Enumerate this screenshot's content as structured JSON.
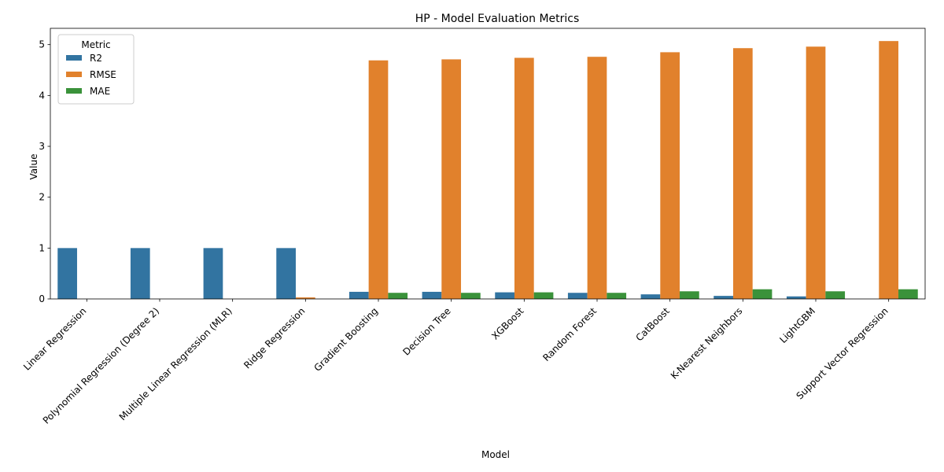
{
  "chart_data": {
    "type": "bar",
    "title": "HP - Model Evaluation Metrics",
    "xlabel": "Model",
    "ylabel": "Value",
    "ylim": [
      0,
      5.32
    ],
    "yticks": [
      0,
      1,
      2,
      3,
      4,
      5
    ],
    "grid": false,
    "legend": {
      "title": "Metric",
      "placement": "top-left"
    },
    "categories": [
      "Linear Regression",
      "Polynomial Regression (Degree 2)",
      "Multiple Linear Regression (MLR)",
      "Ridge Regression",
      "Gradient Boosting",
      "Decision Tree",
      "XGBoost",
      "Random Forest",
      "CatBoost",
      "K-Nearest Neighbors",
      "LightGBM",
      "Support Vector Regression"
    ],
    "series": [
      {
        "name": "R2",
        "color": "#3274a1",
        "values": [
          1.0,
          1.0,
          1.0,
          1.0,
          0.14,
          0.14,
          0.13,
          0.12,
          0.09,
          0.06,
          0.05,
          0.0
        ]
      },
      {
        "name": "RMSE",
        "color": "#e1812c",
        "values": [
          0.0,
          0.0,
          0.0,
          0.03,
          4.69,
          4.71,
          4.74,
          4.76,
          4.85,
          4.93,
          4.96,
          5.07
        ]
      },
      {
        "name": "MAE",
        "color": "#3a923a",
        "values": [
          0.0,
          0.0,
          0.0,
          0.0,
          0.12,
          0.12,
          0.13,
          0.12,
          0.15,
          0.19,
          0.15,
          0.19
        ]
      }
    ]
  }
}
